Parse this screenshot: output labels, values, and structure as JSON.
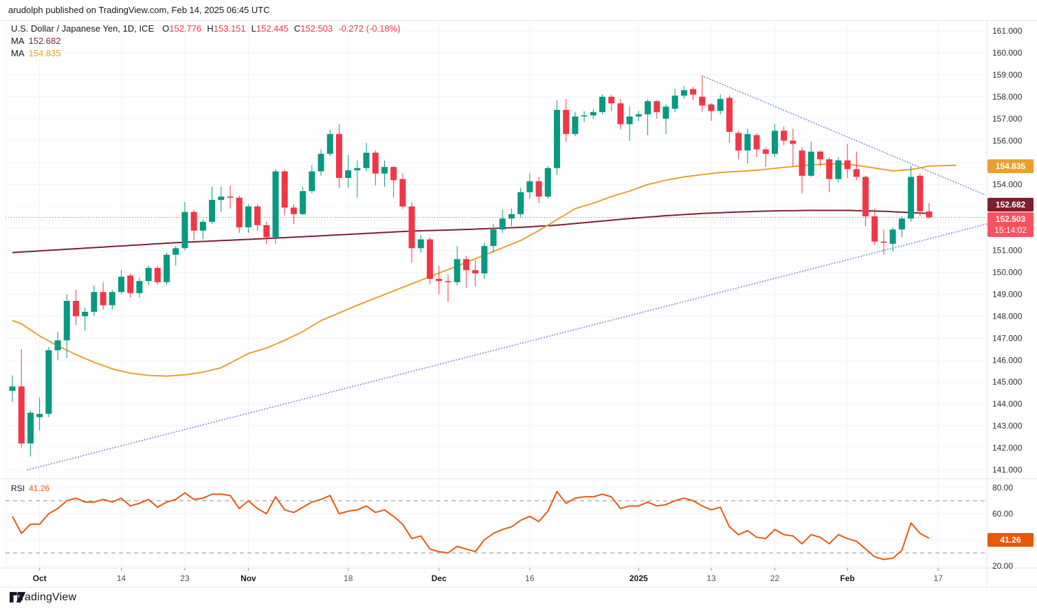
{
  "watermark": "arudolph published on TradingView.com, Feb 14, 2025 06:45 UTC",
  "legend": {
    "symbol": "U.S. Dollar / Japanese Yen, 1D, ICE",
    "o_label": "O",
    "o": "152.776",
    "h_label": "H",
    "h": "153.151",
    "l_label": "L",
    "l": "152.445",
    "c_label": "C",
    "c": "152.503",
    "change": "-0.272 (-0.18%)",
    "ma1_label": "MA",
    "ma1_value": "152.682",
    "ma2_label": "MA",
    "ma2_value": "154.835"
  },
  "rsi_legend": {
    "label": "RSI",
    "value": "41.26"
  },
  "axis_labels": {
    "ma2_box": "154.835",
    "ma1_box": "152.682",
    "last_price_box": "152.503",
    "last_price_time": "15:14:02",
    "rsi_box": "41.26"
  },
  "footer": {
    "brand": "TradingView"
  },
  "colors": {
    "up": "#089981",
    "down": "#f23645",
    "ma1": "#7e1f2e",
    "ma2": "#e8a02f",
    "rsi": "#e8590c",
    "trendline": "#6c83e6",
    "last_price_line": "#f23645",
    "grid": "#f0f3fa",
    "separator": "#e0e3eb",
    "dashed_level": "#8a8d97",
    "axis_text": "#2a2e39",
    "axis_text_minor": "#50535e",
    "tick_stub": "#9598a1"
  },
  "chart_data": {
    "type": "candlestick",
    "title": "U.S. Dollar / Japanese Yen",
    "interval": "1D",
    "exchange": "ICE",
    "current": {
      "open": 152.776,
      "high": 153.151,
      "low": 152.445,
      "close": 152.503,
      "change": -0.272,
      "change_pct": -0.18
    },
    "last_price": 152.503,
    "price_axis": {
      "min": 141,
      "max": 161,
      "step": 1
    },
    "rsi_axis": {
      "ticks": [
        80,
        60,
        20
      ],
      "grid": [
        80,
        60,
        40,
        20
      ],
      "dashed": [
        70,
        30
      ]
    },
    "time_ticks": [
      {
        "label": "Oct",
        "i": 3,
        "major": true
      },
      {
        "label": "14",
        "i": 12,
        "major": false
      },
      {
        "label": "23",
        "i": 19,
        "major": false
      },
      {
        "label": "Nov",
        "i": 26,
        "major": true
      },
      {
        "label": "18",
        "i": 37,
        "major": false
      },
      {
        "label": "Dec",
        "i": 47,
        "major": true
      },
      {
        "label": "16",
        "i": 57,
        "major": false
      },
      {
        "label": "2025",
        "i": 69,
        "major": true
      },
      {
        "label": "13",
        "i": 77,
        "major": false
      },
      {
        "label": "22",
        "i": 84,
        "major": false
      },
      {
        "label": "Feb",
        "i": 92,
        "major": true
      },
      {
        "label": "17",
        "i": 102,
        "major": false
      }
    ],
    "candles": [
      [
        144.6,
        145.3,
        144.1,
        144.8
      ],
      [
        144.8,
        146.5,
        142.0,
        142.2
      ],
      [
        142.2,
        143.7,
        141.6,
        143.6
      ],
      [
        143.4,
        144.3,
        142.8,
        143.55
      ],
      [
        143.55,
        146.6,
        143.4,
        146.45
      ],
      [
        146.45,
        147.3,
        146.0,
        146.9
      ],
      [
        146.9,
        149.0,
        146.1,
        148.7
      ],
      [
        148.7,
        149.2,
        147.6,
        148.0
      ],
      [
        148.0,
        148.4,
        147.35,
        148.2
      ],
      [
        148.2,
        149.4,
        148.0,
        149.1
      ],
      [
        149.1,
        149.55,
        148.3,
        148.5
      ],
      [
        148.5,
        149.2,
        148.3,
        149.1
      ],
      [
        149.1,
        150.1,
        149.0,
        149.8
      ],
      [
        149.85,
        149.95,
        148.85,
        149.05
      ],
      [
        149.05,
        149.75,
        148.85,
        149.6
      ],
      [
        149.6,
        150.3,
        149.4,
        150.2
      ],
      [
        150.2,
        150.3,
        149.45,
        149.55
      ],
      [
        149.55,
        150.9,
        149.45,
        150.8
      ],
      [
        150.8,
        151.2,
        150.3,
        151.1
      ],
      [
        151.1,
        153.2,
        151.0,
        152.75
      ],
      [
        152.75,
        152.85,
        151.45,
        151.9
      ],
      [
        151.9,
        152.4,
        151.5,
        152.3
      ],
      [
        152.3,
        153.9,
        152.2,
        153.3
      ],
      [
        153.3,
        153.9,
        152.75,
        153.45
      ],
      [
        153.45,
        153.95,
        152.9,
        153.4
      ],
      [
        153.4,
        153.5,
        151.8,
        152.05
      ],
      [
        152.05,
        153.1,
        151.8,
        153.0
      ],
      [
        153.0,
        153.1,
        151.9,
        152.15
      ],
      [
        152.15,
        152.3,
        151.3,
        151.6
      ],
      [
        151.6,
        154.7,
        151.3,
        154.6
      ],
      [
        154.6,
        154.7,
        152.6,
        152.95
      ],
      [
        152.95,
        153.1,
        152.2,
        152.65
      ],
      [
        152.65,
        153.9,
        152.6,
        153.7
      ],
      [
        153.7,
        154.9,
        153.6,
        154.6
      ],
      [
        154.6,
        155.6,
        154.4,
        155.4
      ],
      [
        155.4,
        156.5,
        155.3,
        156.3
      ],
      [
        156.3,
        156.75,
        153.85,
        154.3
      ],
      [
        154.3,
        155.35,
        153.85,
        154.65
      ],
      [
        154.65,
        155.1,
        153.4,
        154.75
      ],
      [
        154.75,
        155.9,
        154.6,
        155.45
      ],
      [
        155.45,
        155.55,
        153.95,
        154.5
      ],
      [
        154.5,
        155.1,
        153.9,
        154.8
      ],
      [
        154.8,
        154.85,
        153.4,
        154.2
      ],
      [
        154.25,
        154.5,
        152.9,
        153.0
      ],
      [
        153.0,
        153.2,
        150.45,
        151.1
      ],
      [
        151.1,
        151.7,
        150.9,
        151.5
      ],
      [
        151.5,
        151.6,
        149.45,
        149.7
      ],
      [
        149.7,
        150.3,
        149.0,
        149.6
      ],
      [
        149.6,
        149.9,
        148.65,
        149.55
      ],
      [
        149.55,
        151.2,
        149.4,
        150.6
      ],
      [
        150.6,
        150.75,
        149.3,
        150.1
      ],
      [
        150.1,
        150.55,
        149.35,
        149.95
      ],
      [
        149.95,
        151.35,
        149.7,
        151.2
      ],
      [
        151.2,
        152.2,
        150.9,
        151.95
      ],
      [
        151.95,
        152.85,
        151.8,
        152.45
      ],
      [
        152.45,
        152.9,
        152.1,
        152.65
      ],
      [
        152.65,
        153.85,
        152.5,
        153.65
      ],
      [
        153.65,
        154.5,
        153.35,
        154.15
      ],
      [
        154.15,
        154.35,
        153.15,
        153.45
      ],
      [
        153.45,
        154.85,
        153.35,
        154.75
      ],
      [
        154.75,
        157.85,
        154.45,
        157.4
      ],
      [
        157.4,
        157.9,
        155.95,
        156.3
      ],
      [
        156.3,
        157.3,
        156.2,
        157.1
      ],
      [
        157.1,
        157.35,
        156.85,
        157.15
      ],
      [
        157.15,
        157.45,
        157.0,
        157.3
      ],
      [
        157.3,
        158.1,
        157.2,
        158.0
      ],
      [
        158.0,
        158.08,
        157.35,
        157.7
      ],
      [
        157.7,
        157.9,
        156.5,
        156.75
      ],
      [
        156.75,
        157.55,
        156.0,
        157.1
      ],
      [
        157.1,
        157.35,
        156.9,
        157.2
      ],
      [
        157.2,
        157.88,
        156.25,
        157.8
      ],
      [
        157.8,
        157.85,
        157.0,
        157.3
      ],
      [
        157.0,
        157.65,
        156.3,
        157.55
      ],
      [
        157.45,
        158.35,
        157.3,
        158.05
      ],
      [
        158.05,
        158.5,
        157.9,
        158.3
      ],
      [
        158.35,
        158.45,
        157.85,
        158.1
      ],
      [
        158.0,
        158.95,
        157.3,
        157.6
      ],
      [
        157.65,
        157.7,
        156.9,
        157.35
      ],
      [
        157.35,
        158.1,
        157.2,
        157.9
      ],
      [
        157.95,
        158.05,
        155.9,
        156.4
      ],
      [
        156.35,
        156.45,
        155.15,
        155.55
      ],
      [
        155.55,
        156.55,
        154.95,
        156.3
      ],
      [
        156.25,
        156.35,
        155.25,
        155.6
      ],
      [
        155.6,
        155.7,
        154.8,
        155.4
      ],
      [
        155.4,
        156.75,
        155.25,
        156.45
      ],
      [
        156.45,
        156.65,
        155.8,
        156.0
      ],
      [
        156.0,
        156.55,
        154.8,
        155.85
      ],
      [
        155.55,
        155.7,
        153.6,
        154.4
      ],
      [
        154.4,
        155.95,
        154.35,
        155.5
      ],
      [
        155.5,
        155.55,
        154.85,
        155.15
      ],
      [
        155.15,
        155.25,
        153.65,
        154.25
      ],
      [
        154.25,
        155.25,
        154.1,
        155.1
      ],
      [
        155.1,
        155.85,
        154.3,
        154.7
      ],
      [
        154.7,
        155.5,
        154.2,
        154.35
      ],
      [
        154.35,
        154.4,
        152.1,
        152.55
      ],
      [
        152.55,
        152.9,
        151.25,
        151.4
      ],
      [
        151.4,
        151.95,
        150.8,
        151.35
      ],
      [
        151.3,
        152.05,
        150.95,
        151.95
      ],
      [
        151.95,
        152.55,
        151.6,
        152.45
      ],
      [
        152.45,
        154.85,
        152.3,
        154.35
      ],
      [
        154.4,
        154.5,
        152.55,
        152.78
      ],
      [
        152.776,
        153.151,
        152.445,
        152.503
      ]
    ],
    "ma1_points": [
      [
        0,
        150.9
      ],
      [
        6,
        151.05
      ],
      [
        12,
        151.2
      ],
      [
        18,
        151.35
      ],
      [
        26,
        151.5
      ],
      [
        32,
        151.62
      ],
      [
        38,
        151.75
      ],
      [
        44,
        151.88
      ],
      [
        50,
        151.95
      ],
      [
        56,
        152.05
      ],
      [
        60,
        152.15
      ],
      [
        64,
        152.3
      ],
      [
        68,
        152.45
      ],
      [
        72,
        152.58
      ],
      [
        76,
        152.68
      ],
      [
        80,
        152.75
      ],
      [
        84,
        152.8
      ],
      [
        88,
        152.82
      ],
      [
        92,
        152.82
      ],
      [
        96,
        152.78
      ],
      [
        99,
        152.72
      ],
      [
        101,
        152.68
      ]
    ],
    "ma2_points": [
      [
        0,
        147.8
      ],
      [
        1,
        147.65
      ],
      [
        3,
        147.1
      ],
      [
        5,
        146.65
      ],
      [
        7,
        146.25
      ],
      [
        9,
        145.9
      ],
      [
        11,
        145.6
      ],
      [
        13,
        145.4
      ],
      [
        15,
        145.3
      ],
      [
        17,
        145.27
      ],
      [
        19,
        145.33
      ],
      [
        21,
        145.45
      ],
      [
        23,
        145.65
      ],
      [
        26,
        146.3
      ],
      [
        28,
        146.55
      ],
      [
        30,
        146.9
      ],
      [
        32,
        147.3
      ],
      [
        34,
        147.8
      ],
      [
        38,
        148.5
      ],
      [
        42,
        149.15
      ],
      [
        46,
        149.8
      ],
      [
        50,
        150.45
      ],
      [
        53,
        150.95
      ],
      [
        56,
        151.45
      ],
      [
        58,
        151.9
      ],
      [
        60,
        152.4
      ],
      [
        62,
        152.9
      ],
      [
        64,
        153.15
      ],
      [
        66,
        153.45
      ],
      [
        68,
        153.7
      ],
      [
        70,
        154.0
      ],
      [
        72,
        154.2
      ],
      [
        74,
        154.35
      ],
      [
        76,
        154.45
      ],
      [
        78,
        154.55
      ],
      [
        80,
        154.6
      ],
      [
        82,
        154.65
      ],
      [
        85,
        154.78
      ],
      [
        88,
        154.9
      ],
      [
        91,
        154.95
      ],
      [
        93,
        154.88
      ],
      [
        95,
        154.75
      ],
      [
        97,
        154.62
      ],
      [
        99,
        154.68
      ],
      [
        101,
        154.84
      ],
      [
        104,
        154.88
      ]
    ],
    "rsi": [
      58,
      45,
      52,
      52,
      60,
      64,
      70,
      72,
      69,
      69,
      71,
      69,
      72,
      66,
      68,
      71,
      65,
      69,
      71,
      76,
      71,
      72,
      75,
      75,
      74,
      64,
      70,
      64,
      60,
      73,
      63,
      61,
      65,
      69,
      71,
      74,
      60,
      62,
      63,
      66,
      61,
      63,
      58,
      52,
      41,
      43,
      33,
      31,
      30,
      35,
      33,
      31,
      40,
      45,
      48,
      50,
      55,
      58,
      54,
      62,
      77,
      68,
      72,
      73,
      73,
      75,
      73,
      64,
      66,
      66,
      69,
      66,
      67,
      70,
      72,
      70,
      66,
      63,
      65,
      50,
      44,
      47,
      42,
      41,
      48,
      44,
      43,
      37,
      44,
      42,
      37,
      44,
      41,
      39,
      33,
      27,
      25,
      26,
      32,
      53,
      45,
      41.26
    ],
    "rsi_current": 41.26,
    "trendlines": [
      {
        "name": "descending-resistance",
        "i1": 76,
        "p1": 158.95,
        "i2": 107.05,
        "p2": 153.55
      },
      {
        "name": "ascending-support",
        "i1": 1.67,
        "p1": 141.0,
        "i2": 107.36,
        "p2": 152.2
      }
    ]
  }
}
